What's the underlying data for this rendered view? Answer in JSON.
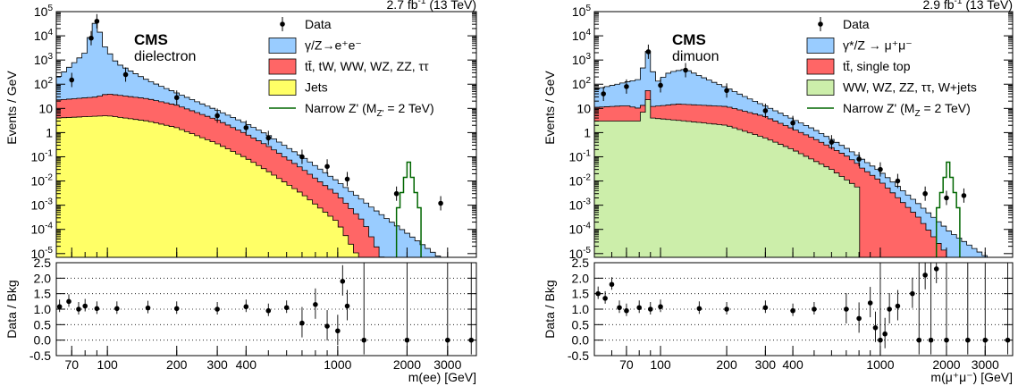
{
  "chart_data": [
    {
      "type": "area",
      "panel_id": "dielectron",
      "lumi": "2.7 fb",
      "lumi_exp": "-1",
      "lumi_suffix": " (13 TeV)",
      "cms": "CMS",
      "channel": "dielectron",
      "xlabel": "m(ee) [GeV]",
      "ylabel_top": "Events / GeV",
      "ylabel_ratio": "Data / Bkg",
      "x_scale": "log",
      "xlim": [
        60,
        4000
      ],
      "ylim": [
        7e-06,
        100000
      ],
      "ratio_ylim": [
        -0.5,
        2.5
      ],
      "xticks": [
        70,
        100,
        200,
        300,
        400,
        1000,
        2000,
        3000
      ],
      "ratio_yticks": [
        "2.5",
        "2.0",
        "1.5",
        "1.0",
        "0.5",
        "0.0",
        "-0.5"
      ],
      "y_tick_labels": [
        {
          "base": "10",
          "exp": "5"
        },
        {
          "base": "10",
          "exp": "4"
        },
        {
          "base": "10",
          "exp": "3"
        },
        {
          "base": "10",
          "exp": "2"
        },
        {
          "base": "10",
          "exp": ""
        },
        {
          "base": "1",
          "exp": ""
        },
        {
          "base": "10",
          "exp": "-1"
        },
        {
          "base": "10",
          "exp": "-2"
        },
        {
          "base": "10",
          "exp": "-3"
        },
        {
          "base": "10",
          "exp": "-4"
        },
        {
          "base": "10",
          "exp": "-5"
        }
      ],
      "legend": [
        {
          "label": "Data",
          "kind": "marker"
        },
        {
          "label": "γ/Z→e⁺e⁻",
          "kind": "fill",
          "color": "#99ccff"
        },
        {
          "label": "tt̄, tW, WW, WZ, ZZ, ττ",
          "kind": "fill",
          "color": "#ff6666"
        },
        {
          "label": "Jets",
          "kind": "fill",
          "color": "#ffff66"
        },
        {
          "label": "Narrow Z' (M",
          "label_sub": "Z'",
          "label_end": " = 2 TeV)",
          "kind": "line",
          "color": "#006600"
        }
      ],
      "dy_knots": [
        [
          60,
          150
        ],
        [
          80,
          2000
        ],
        [
          86,
          20000
        ],
        [
          90,
          50000
        ],
        [
          95,
          5000
        ],
        [
          110,
          700
        ],
        [
          150,
          120
        ],
        [
          200,
          30
        ],
        [
          300,
          5
        ],
        [
          400,
          1.5
        ],
        [
          500,
          0.5
        ],
        [
          700,
          0.07
        ],
        [
          1000,
          0.007
        ],
        [
          1500,
          0.0005
        ],
        [
          2000,
          7e-05
        ],
        [
          3000,
          4e-06
        ],
        [
          4000,
          5e-07
        ]
      ],
      "tt_knots": [
        [
          60,
          18
        ],
        [
          90,
          25
        ],
        [
          100,
          35
        ],
        [
          150,
          22
        ],
        [
          200,
          12
        ],
        [
          300,
          3
        ],
        [
          400,
          0.8
        ],
        [
          500,
          0.25
        ],
        [
          700,
          0.03
        ],
        [
          1000,
          0.0025
        ],
        [
          1300,
          0.0002
        ],
        [
          1600,
          4e-06
        ]
      ],
      "jets_knots": [
        [
          60,
          4
        ],
        [
          100,
          5
        ],
        [
          150,
          3
        ],
        [
          200,
          1.6
        ],
        [
          300,
          0.35
        ],
        [
          400,
          0.09
        ],
        [
          500,
          0.025
        ],
        [
          700,
          0.003
        ],
        [
          1000,
          0.0002
        ],
        [
          1300,
          3e-06
        ]
      ],
      "signal": {
        "x": [
          1800,
          2300
        ],
        "peak": 0.06
      },
      "data_points": [
        [
          70,
          150
        ],
        [
          85,
          8000
        ],
        [
          90,
          40000
        ],
        [
          120,
          250
        ],
        [
          200,
          28
        ],
        [
          300,
          5
        ],
        [
          400,
          1.6
        ],
        [
          500,
          0.6
        ],
        [
          700,
          0.1
        ],
        [
          900,
          0.04
        ],
        [
          1100,
          0.012
        ],
        [
          1800,
          0.003
        ],
        [
          2800,
          0.0012
        ]
      ],
      "ratio_points": [
        [
          62,
          1.08
        ],
        [
          68,
          1.25
        ],
        [
          75,
          1.0
        ],
        [
          80,
          1.1
        ],
        [
          90,
          1.02
        ],
        [
          110,
          1.02
        ],
        [
          150,
          1.04
        ],
        [
          200,
          1.02
        ],
        [
          300,
          1.0
        ],
        [
          400,
          1.08
        ],
        [
          500,
          0.95
        ],
        [
          600,
          1.05
        ],
        [
          700,
          0.55
        ],
        [
          800,
          1.15
        ],
        [
          900,
          0.45
        ],
        [
          1000,
          0.3
        ],
        [
          1050,
          1.9
        ],
        [
          1100,
          1.1
        ],
        [
          1300,
          0.0
        ],
        [
          2000,
          0.0
        ],
        [
          3000,
          0.0
        ],
        [
          3800,
          0.0
        ]
      ]
    },
    {
      "type": "area",
      "panel_id": "dimuon",
      "lumi": "2.9 fb",
      "lumi_exp": "-1",
      "lumi_suffix": " (13 TeV)",
      "cms": "CMS",
      "channel": "dimuon",
      "xlabel": "m(μ⁺μ⁻) [GeV]",
      "ylabel_top": "Events / GeV",
      "ylabel_ratio": "Data / Bkg",
      "x_scale": "log",
      "xlim": [
        50,
        4000
      ],
      "ylim": [
        7e-06,
        100000
      ],
      "ratio_ylim": [
        -0.5,
        2.5
      ],
      "xticks": [
        70,
        100,
        200,
        300,
        400,
        1000,
        2000,
        3000
      ],
      "ratio_yticks": [
        "2.5",
        "2.0",
        "1.5",
        "1.0",
        "0.5",
        "0.0",
        "-0.5"
      ],
      "y_tick_labels": [
        {
          "base": "10",
          "exp": "5"
        },
        {
          "base": "10",
          "exp": "4"
        },
        {
          "base": "10",
          "exp": "3"
        },
        {
          "base": "10",
          "exp": "2"
        },
        {
          "base": "10",
          "exp": ""
        },
        {
          "base": "1",
          "exp": ""
        },
        {
          "base": "10",
          "exp": "-1"
        },
        {
          "base": "10",
          "exp": "-2"
        },
        {
          "base": "10",
          "exp": "-3"
        },
        {
          "base": "10",
          "exp": "-4"
        },
        {
          "base": "10",
          "exp": "-5"
        }
      ],
      "legend": [
        {
          "label": "Data",
          "kind": "marker"
        },
        {
          "label": "γ*/Z → μ⁺μ⁻",
          "kind": "fill",
          "color": "#99ccff"
        },
        {
          "label": "tt̄, single top",
          "kind": "fill",
          "color": "#ff6666"
        },
        {
          "label": "WW, WZ, ZZ, ττ, W+jets",
          "kind": "fill",
          "color": "#cceeaa"
        },
        {
          "label": "Narrow Z' (M",
          "label_sub": "Z",
          "label_end": " = 2 TeV)",
          "kind": "line",
          "color": "#006600"
        }
      ],
      "dy_knots": [
        [
          50,
          50
        ],
        [
          80,
          150
        ],
        [
          88,
          2500
        ],
        [
          95,
          100
        ],
        [
          110,
          300
        ],
        [
          130,
          400
        ],
        [
          200,
          60
        ],
        [
          300,
          8
        ],
        [
          500,
          0.8
        ],
        [
          700,
          0.12
        ],
        [
          1000,
          0.015
        ],
        [
          1500,
          0.0008
        ],
        [
          2000,
          0.0001
        ],
        [
          3000,
          8e-06
        ],
        [
          4000,
          1e-06
        ]
      ],
      "tt_knots": [
        [
          50,
          8
        ],
        [
          70,
          10
        ],
        [
          85,
          6
        ],
        [
          88,
          40
        ],
        [
          92,
          8
        ],
        [
          120,
          12
        ],
        [
          200,
          10
        ],
        [
          300,
          4
        ],
        [
          500,
          0.5
        ],
        [
          700,
          0.1
        ],
        [
          1000,
          0.01
        ],
        [
          1500,
          0.0003
        ],
        [
          2000,
          1e-05
        ]
      ],
      "jets_knots": [
        [
          50,
          3
        ],
        [
          80,
          3
        ],
        [
          88,
          25
        ],
        [
          92,
          4
        ],
        [
          130,
          3
        ],
        [
          200,
          2
        ],
        [
          300,
          0.6
        ],
        [
          400,
          0.2
        ],
        [
          600,
          0.03
        ],
        [
          800,
          0.005
        ]
      ],
      "signal": {
        "x": [
          1800,
          2300
        ],
        "peak": 0.06
      },
      "data_points": [
        [
          55,
          40
        ],
        [
          70,
          80
        ],
        [
          88,
          2200
        ],
        [
          100,
          90
        ],
        [
          130,
          380
        ],
        [
          200,
          55
        ],
        [
          300,
          8
        ],
        [
          400,
          2.5
        ],
        [
          600,
          0.4
        ],
        [
          800,
          0.08
        ],
        [
          1000,
          0.03
        ],
        [
          1200,
          0.01
        ],
        [
          1600,
          0.003
        ],
        [
          2000,
          0.002
        ],
        [
          2400,
          0.0025
        ]
      ],
      "ratio_points": [
        [
          52,
          1.5
        ],
        [
          56,
          1.35
        ],
        [
          60,
          1.8
        ],
        [
          65,
          1.05
        ],
        [
          70,
          0.95
        ],
        [
          80,
          1.05
        ],
        [
          90,
          1.0
        ],
        [
          100,
          1.08
        ],
        [
          150,
          1.02
        ],
        [
          200,
          1.0
        ],
        [
          300,
          1.05
        ],
        [
          400,
          0.95
        ],
        [
          500,
          1.0
        ],
        [
          700,
          1.0
        ],
        [
          800,
          0.7
        ],
        [
          900,
          1.2
        ],
        [
          950,
          0.4
        ],
        [
          1000,
          0.0
        ],
        [
          1050,
          0.2
        ],
        [
          1100,
          1.0
        ],
        [
          1200,
          1.1
        ],
        [
          1400,
          1.5
        ],
        [
          1500,
          0.0
        ],
        [
          1600,
          2.1
        ],
        [
          1700,
          0.0
        ],
        [
          1800,
          2.3
        ],
        [
          2000,
          0.0
        ],
        [
          2500,
          0.0
        ],
        [
          3000,
          0.0
        ],
        [
          3800,
          0.0
        ]
      ]
    }
  ]
}
